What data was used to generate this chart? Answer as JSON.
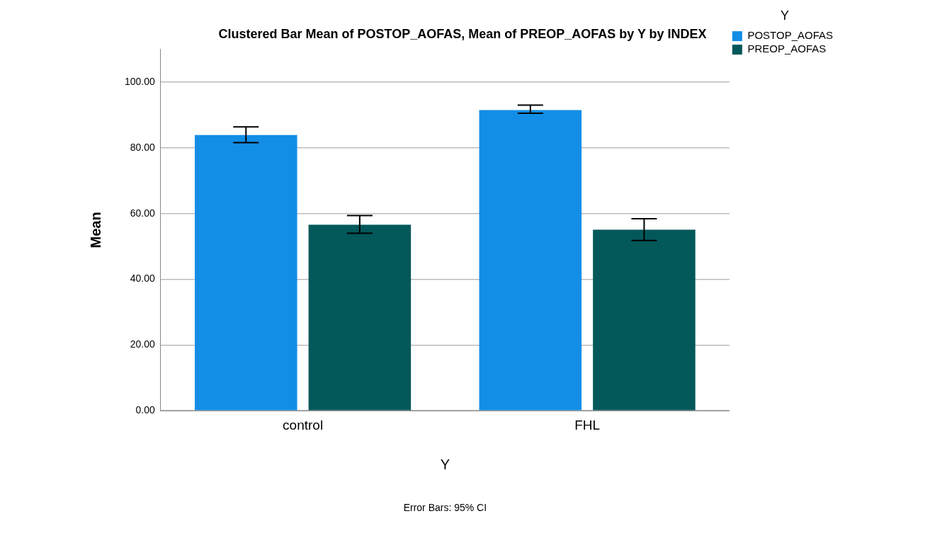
{
  "chart_data": {
    "type": "bar",
    "title": "Clustered Bar Mean of POSTOP_AOFAS, Mean of PREOP_AOFAS by Y by INDEX",
    "xlabel": "Y",
    "ylabel": "Mean",
    "legend_title": "Y",
    "categories": [
      "control",
      "FHL"
    ],
    "series": [
      {
        "name": "POSTOP_AOFAS",
        "color": "#128ee6",
        "values": [
          83.9,
          91.5
        ],
        "errors": [
          [
            81.6,
            86.4
          ],
          [
            90.5,
            93.0
          ]
        ]
      },
      {
        "name": "PREOP_AOFAS",
        "color": "#03585a",
        "values": [
          56.6,
          55.1
        ],
        "errors": [
          [
            54.0,
            59.4
          ],
          [
            51.8,
            58.4
          ]
        ]
      }
    ],
    "ylim": [
      0,
      110
    ],
    "yticks": [
      {
        "value": 0,
        "label": "0.00"
      },
      {
        "value": 20,
        "label": "20.00"
      },
      {
        "value": 40,
        "label": "40.00"
      },
      {
        "value": 60,
        "label": "60.00"
      },
      {
        "value": 80,
        "label": "80.00"
      },
      {
        "value": 100,
        "label": "100.00"
      }
    ],
    "grid": "y",
    "legend": "top right",
    "annotations": [
      "Error Bars: 95% CI"
    ]
  }
}
